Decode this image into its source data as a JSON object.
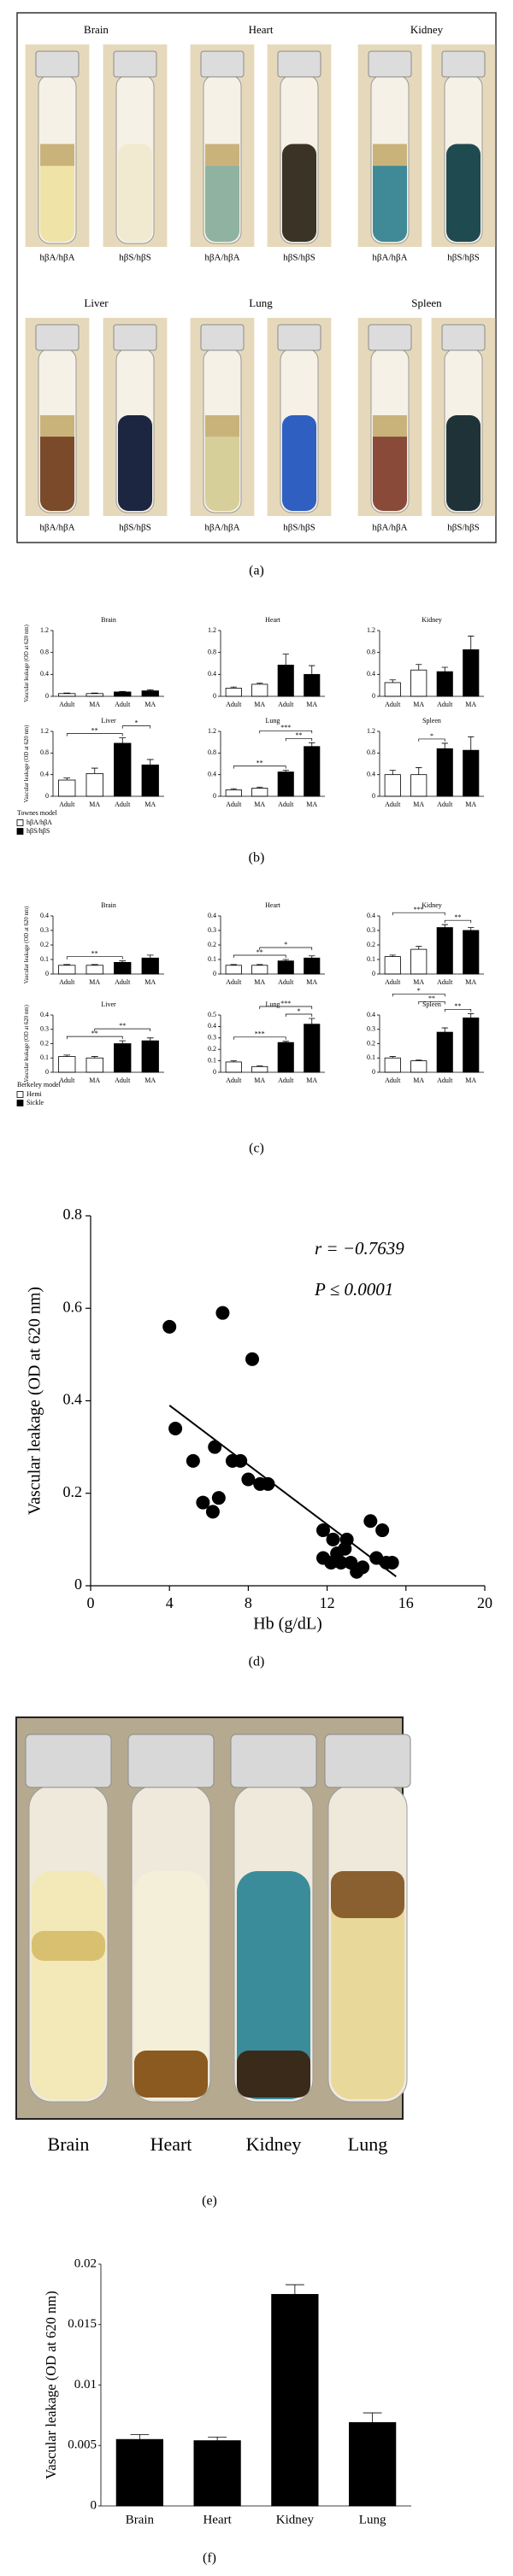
{
  "panel_labels": [
    "(a)",
    "(b)",
    "(c)",
    "(d)",
    "(e)",
    "(f)"
  ],
  "panel_a": {
    "organs": [
      "Brain",
      "Heart",
      "Kidney",
      "Liver",
      "Lung",
      "Spleen"
    ],
    "genotypes": [
      "hβA/hβA",
      "hβS/hβS"
    ]
  },
  "panel_e": {
    "labels": [
      "Brain",
      "Heart",
      "Kidney",
      "Lung"
    ]
  },
  "legends": [
    {
      "title": "Townes model",
      "entries": [
        {
          "name": "hβA/hβA",
          "color": "#ffffff"
        },
        {
          "name": "hβS/hβS",
          "color": "#000000"
        }
      ]
    },
    {
      "title": "Berkeley model",
      "entries": [
        {
          "name": "Hemi",
          "color": "#ffffff"
        },
        {
          "name": "Sickle",
          "color": "#000000"
        }
      ]
    }
  ],
  "chart_data": [
    {
      "type": "bar",
      "title": "Brain",
      "ylabel": "Vascular leakage (OD at 620 nm)",
      "categories": [
        "Adult",
        "MA",
        "Adult",
        "MA"
      ],
      "values": [
        0.05,
        0.05,
        0.08,
        0.1
      ],
      "errors": [
        0.01,
        0.01,
        0.01,
        0.02
      ],
      "colors": [
        "#ffffff",
        "#ffffff",
        "#000000",
        "#000000"
      ],
      "ylim": [
        0,
        1.2
      ],
      "yticks": [
        0,
        0.4,
        0.8,
        1.2
      ]
    },
    {
      "type": "bar",
      "title": "Heart",
      "categories": [
        "Adult",
        "MA",
        "Adult",
        "MA"
      ],
      "values": [
        0.15,
        0.22,
        0.57,
        0.4
      ],
      "errors": [
        0.02,
        0.02,
        0.2,
        0.16
      ],
      "colors": [
        "#ffffff",
        "#ffffff",
        "#000000",
        "#000000"
      ],
      "ylim": [
        0,
        1.2
      ],
      "yticks": [
        0,
        0.4,
        0.8,
        1.2
      ]
    },
    {
      "type": "bar",
      "title": "Kidney",
      "categories": [
        "Adult",
        "MA",
        "Adult",
        "MA"
      ],
      "values": [
        0.25,
        0.48,
        0.45,
        0.85
      ],
      "errors": [
        0.05,
        0.1,
        0.08,
        0.25
      ],
      "colors": [
        "#ffffff",
        "#ffffff",
        "#000000",
        "#000000"
      ],
      "ylim": [
        0,
        1.2
      ],
      "yticks": [
        0,
        0.4,
        0.8,
        1.2
      ]
    },
    {
      "type": "bar",
      "title": "Liver",
      "ylabel": "Vascular leakage (OD at 620 nm)",
      "categories": [
        "Adult",
        "MA",
        "Adult",
        "MA"
      ],
      "values": [
        0.3,
        0.42,
        0.98,
        0.58
      ],
      "errors": [
        0.04,
        0.1,
        0.1,
        0.1
      ],
      "colors": [
        "#ffffff",
        "#ffffff",
        "#000000",
        "#000000"
      ],
      "ylim": [
        0,
        1.2
      ],
      "yticks": [
        0,
        0.4,
        0.8,
        1.2
      ],
      "annotations": [
        {
          "text": "**",
          "from": 0,
          "to": 2
        },
        {
          "text": "*",
          "from": 2,
          "to": 3
        }
      ]
    },
    {
      "type": "bar",
      "title": "Lung",
      "categories": [
        "Adult",
        "MA",
        "Adult",
        "MA"
      ],
      "values": [
        0.12,
        0.15,
        0.45,
        0.92
      ],
      "errors": [
        0.02,
        0.02,
        0.03,
        0.07
      ],
      "colors": [
        "#ffffff",
        "#ffffff",
        "#000000",
        "#000000"
      ],
      "ylim": [
        0,
        1.2
      ],
      "yticks": [
        0,
        0.4,
        0.8,
        1.2
      ],
      "annotations": [
        {
          "text": "**",
          "from": 0,
          "to": 2
        },
        {
          "text": "**",
          "from": 2,
          "to": 3
        },
        {
          "text": "***",
          "from": 1,
          "to": 3
        }
      ]
    },
    {
      "type": "bar",
      "title": "Spleen",
      "categories": [
        "Adult",
        "MA",
        "Adult",
        "MA"
      ],
      "values": [
        0.4,
        0.4,
        0.88,
        0.85
      ],
      "errors": [
        0.08,
        0.13,
        0.1,
        0.25
      ],
      "colors": [
        "#ffffff",
        "#ffffff",
        "#000000",
        "#000000"
      ],
      "ylim": [
        0,
        1.2
      ],
      "yticks": [
        0,
        0.4,
        0.8,
        1.2
      ],
      "annotations": [
        {
          "text": "*",
          "from": 1,
          "to": 2
        }
      ]
    },
    {
      "type": "bar",
      "title": "Brain",
      "ylabel": "Vascular leakage (OD at 620 nm)",
      "categories": [
        "Adult",
        "MA",
        "Adult",
        "MA"
      ],
      "values": [
        0.06,
        0.06,
        0.08,
        0.11
      ],
      "errors": [
        0.005,
        0.005,
        0.01,
        0.02
      ],
      "colors": [
        "#ffffff",
        "#ffffff",
        "#000000",
        "#000000"
      ],
      "ylim": [
        0,
        0.4
      ],
      "yticks": [
        0,
        0.1,
        0.2,
        0.3,
        0.4
      ],
      "annotations": [
        {
          "text": "**",
          "from": 0,
          "to": 2
        }
      ]
    },
    {
      "type": "bar",
      "title": "Heart",
      "categories": [
        "Adult",
        "MA",
        "Adult",
        "MA"
      ],
      "values": [
        0.06,
        0.06,
        0.09,
        0.11
      ],
      "errors": [
        0.005,
        0.005,
        0.01,
        0.015
      ],
      "colors": [
        "#ffffff",
        "#ffffff",
        "#000000",
        "#000000"
      ],
      "ylim": [
        0,
        0.4
      ],
      "yticks": [
        0,
        0.1,
        0.2,
        0.3,
        0.4
      ],
      "annotations": [
        {
          "text": "**",
          "from": 0,
          "to": 2
        },
        {
          "text": "*",
          "from": 1,
          "to": 3
        }
      ]
    },
    {
      "type": "bar",
      "title": "Kidney",
      "categories": [
        "Adult",
        "MA",
        "Adult",
        "MA"
      ],
      "values": [
        0.12,
        0.17,
        0.32,
        0.3
      ],
      "errors": [
        0.01,
        0.02,
        0.02,
        0.02
      ],
      "colors": [
        "#ffffff",
        "#ffffff",
        "#000000",
        "#000000"
      ],
      "ylim": [
        0,
        0.4
      ],
      "yticks": [
        0,
        0.1,
        0.2,
        0.3,
        0.4
      ],
      "annotations": [
        {
          "text": "**",
          "from": 2,
          "to": 3
        },
        {
          "text": "***",
          "from": 0,
          "to": 2
        }
      ]
    },
    {
      "type": "bar",
      "title": "Liver",
      "ylabel": "Vascular leakage (OD at 620 nm)",
      "categories": [
        "Adult",
        "MA",
        "Adult",
        "MA"
      ],
      "values": [
        0.11,
        0.1,
        0.2,
        0.22
      ],
      "errors": [
        0.01,
        0.01,
        0.02,
        0.02
      ],
      "colors": [
        "#ffffff",
        "#ffffff",
        "#000000",
        "#000000"
      ],
      "ylim": [
        0,
        0.4
      ],
      "yticks": [
        0,
        0.1,
        0.2,
        0.3,
        0.4
      ],
      "annotations": [
        {
          "text": "**",
          "from": 0,
          "to": 2
        },
        {
          "text": "**",
          "from": 1,
          "to": 3
        }
      ]
    },
    {
      "type": "bar",
      "title": "Lung",
      "categories": [
        "Adult",
        "MA",
        "Adult",
        "MA"
      ],
      "values": [
        0.09,
        0.05,
        0.26,
        0.42
      ],
      "errors": [
        0.01,
        0.005,
        0.01,
        0.05
      ],
      "colors": [
        "#ffffff",
        "#ffffff",
        "#000000",
        "#000000"
      ],
      "ylim": [
        0,
        0.5
      ],
      "yticks": [
        0,
        0.1,
        0.2,
        0.3,
        0.4,
        0.5
      ],
      "annotations": [
        {
          "text": "***",
          "from": 0,
          "to": 2
        },
        {
          "text": "*",
          "from": 2,
          "to": 3
        },
        {
          "text": "***",
          "from": 1,
          "to": 3
        }
      ]
    },
    {
      "type": "bar",
      "title": "Spleen",
      "categories": [
        "Adult",
        "MA",
        "Adult",
        "MA"
      ],
      "values": [
        0.1,
        0.08,
        0.28,
        0.38
      ],
      "errors": [
        0.01,
        0.005,
        0.03,
        0.03
      ],
      "colors": [
        "#ffffff",
        "#ffffff",
        "#000000",
        "#000000"
      ],
      "ylim": [
        0,
        0.4
      ],
      "yticks": [
        0,
        0.1,
        0.2,
        0.3,
        0.4
      ],
      "annotations": [
        {
          "text": "**",
          "from": 2,
          "to": 3
        },
        {
          "text": "**",
          "from": 1,
          "to": 2
        },
        {
          "text": "*",
          "from": 0,
          "to": 2
        }
      ]
    },
    {
      "type": "scatter",
      "xlabel": "Hb (g/dL)",
      "ylabel": "Vascular leakage (OD at 620 nm)",
      "x": [
        4,
        4.3,
        5.2,
        5.7,
        6.2,
        6.3,
        6.7,
        6.5,
        7.2,
        7.6,
        8,
        8.2,
        8.6,
        9,
        11.8,
        12.3,
        12.2,
        12.5,
        12.7,
        13,
        13.2,
        13.5,
        14.2,
        14.5,
        14.8,
        15,
        15.3,
        13.8,
        12.9,
        11.8
      ],
      "values": [
        0.56,
        0.34,
        0.27,
        0.18,
        0.16,
        0.3,
        0.59,
        0.19,
        0.27,
        0.27,
        0.23,
        0.49,
        0.22,
        0.22,
        0.12,
        0.1,
        0.05,
        0.07,
        0.05,
        0.1,
        0.05,
        0.03,
        0.14,
        0.06,
        0.12,
        0.05,
        0.05,
        0.04,
        0.08,
        0.06
      ],
      "color": "#000000",
      "fit": {
        "x": [
          4,
          15.5
        ],
        "values": [
          0.39,
          0.02
        ]
      },
      "annotations": [
        "r = −0.7639",
        "P ≤ 0.0001"
      ],
      "xlim": [
        0,
        20
      ],
      "xticks": [
        0,
        4,
        8,
        12,
        16,
        20
      ],
      "ylim": [
        0,
        0.8
      ],
      "yticks": [
        0,
        0.2,
        0.4,
        0.6,
        0.8
      ]
    },
    {
      "type": "bar",
      "ylabel": "Vascular leakage (OD at 620 nm)",
      "categories": [
        "Brain",
        "Heart",
        "Kidney",
        "Lung"
      ],
      "values": [
        0.0055,
        0.0054,
        0.0175,
        0.0069
      ],
      "errors": [
        0.0004,
        0.0003,
        0.0008,
        0.0008
      ],
      "color": "#000000",
      "ylim": [
        0,
        0.02
      ],
      "yticks": [
        0,
        0.005,
        0.01,
        0.015,
        0.02
      ]
    }
  ]
}
